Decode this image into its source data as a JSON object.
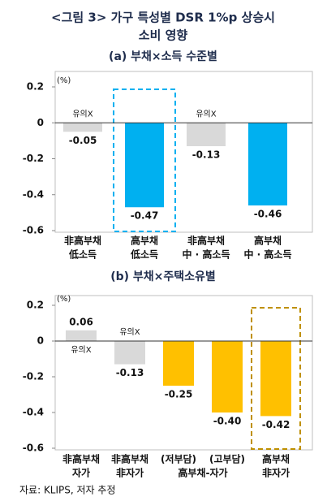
{
  "title": [
    "<그림 3> 가구 특성별 DSR 1%p 상승시",
    "소비 영향"
  ],
  "source": "자료: KLIPS, 저자 추정",
  "chart_data": [
    {
      "type": "bar",
      "title": "(a) 부채×소득 수준별",
      "ylabel": "(%)",
      "categories": [
        [
          "非高부채",
          "低소득"
        ],
        [
          "高부채",
          "低소득"
        ],
        [
          "非高부채",
          "中 · 高소득"
        ],
        [
          "高부채",
          "中 · 高소득"
        ]
      ],
      "values": [
        -0.05,
        -0.47,
        -0.13,
        -0.46
      ],
      "value_labels": [
        "-0.05",
        "-0.47",
        "-0.13",
        "-0.46"
      ],
      "colors": [
        "#d9d9d9",
        "#00b0f0",
        "#d9d9d9",
        "#00b0f0"
      ],
      "annotations": [
        {
          "index": 0,
          "text": "유의X"
        },
        {
          "index": 2,
          "text": "유의X"
        }
      ],
      "highlight": {
        "index": 1,
        "color": "#00b0f0"
      },
      "ylim": [
        -0.6,
        0.2
      ],
      "yticks": [
        0.2,
        0,
        -0.2,
        -0.4,
        -0.6
      ]
    },
    {
      "type": "bar",
      "title": "(b) 부채×주택소유별",
      "ylabel": "(%)",
      "categories": [
        [
          "非高부채",
          "자가"
        ],
        [
          "非高부채",
          "非자가"
        ],
        [
          "(저부담)"
        ],
        [
          "(고부담)"
        ],
        [
          "高부채",
          "非자가"
        ]
      ],
      "group_label": {
        "indices": [
          2,
          3
        ],
        "text": "高부채-자가"
      },
      "values": [
        0.06,
        -0.13,
        -0.25,
        -0.4,
        -0.42
      ],
      "value_labels": [
        "0.06",
        "-0.13",
        "-0.25",
        "-0.40",
        "-0.42"
      ],
      "colors": [
        "#d9d9d9",
        "#d9d9d9",
        "#ffc000",
        "#ffc000",
        "#ffc000"
      ],
      "annotations": [
        {
          "index": 0,
          "text": "유의X"
        },
        {
          "index": 1,
          "text": "유의X"
        }
      ],
      "highlight": {
        "index": 4,
        "color": "#bf9000"
      },
      "ylim": [
        -0.6,
        0.2
      ],
      "yticks": [
        0.2,
        0,
        -0.2,
        -0.4,
        -0.6
      ]
    }
  ]
}
